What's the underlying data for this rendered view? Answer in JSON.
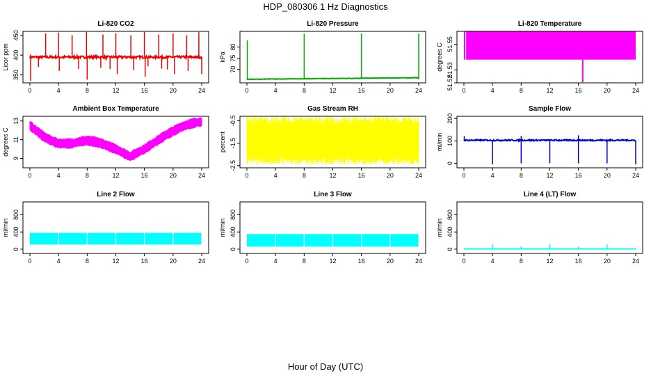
{
  "title": "HDP_080306  1 Hz Diagnostics",
  "xlabel": "Hour of Day (UTC)",
  "chart_data": [
    {
      "type": "line",
      "title": "Li-820 CO2",
      "ylabel": "Licor ppm",
      "color": "#ee0000",
      "xlim": [
        0,
        24
      ],
      "ylim": [
        330,
        460
      ],
      "xticks": [
        0,
        4,
        8,
        12,
        16,
        20,
        24
      ],
      "yticks": [
        350,
        400,
        450
      ],
      "ytick_labels": [
        "350",
        "400",
        "450"
      ],
      "baseline": 395,
      "noise": 3,
      "spikes_up": [
        [
          2.2,
          455
        ],
        [
          4.0,
          457
        ],
        [
          5.9,
          450
        ],
        [
          7.9,
          458
        ],
        [
          10.2,
          452
        ],
        [
          12.0,
          455
        ],
        [
          14.1,
          450
        ],
        [
          16.0,
          460
        ],
        [
          18.0,
          452
        ],
        [
          20.0,
          455
        ],
        [
          21.9,
          450
        ],
        [
          23.6,
          458
        ]
      ],
      "spikes_down": [
        [
          0.1,
          335
        ],
        [
          1.2,
          370
        ],
        [
          4.1,
          360
        ],
        [
          6.8,
          365
        ],
        [
          8.0,
          338
        ],
        [
          9.9,
          368
        ],
        [
          11.2,
          365
        ],
        [
          12.2,
          352
        ],
        [
          14.5,
          362
        ],
        [
          16.1,
          345
        ],
        [
          16.5,
          372
        ],
        [
          18.4,
          366
        ],
        [
          19.2,
          364
        ],
        [
          20.2,
          352
        ],
        [
          22.1,
          360
        ],
        [
          24.0,
          352
        ]
      ]
    },
    {
      "type": "line",
      "title": "Li-820 Pressure",
      "ylabel": "kPa",
      "color": "#00aa00",
      "xlim": [
        0,
        24
      ],
      "ylim": [
        64,
        87
      ],
      "xticks": [
        0,
        4,
        8,
        12,
        16,
        20,
        24
      ],
      "yticks": [
        70,
        75,
        80
      ],
      "ytick_labels": [
        "70",
        "75",
        "80"
      ],
      "baseline": 65.6,
      "baseline_end": 66.3,
      "noise": 0.1,
      "spikes_up": [
        [
          0.05,
          83
        ],
        [
          8.0,
          86
        ],
        [
          16.0,
          86
        ],
        [
          24.0,
          86
        ]
      ],
      "spikes_down": []
    },
    {
      "type": "area",
      "title": "Li-820 Temperature",
      "ylabel": "degrees C",
      "color": "#ff00ff",
      "xlim": [
        0,
        24
      ],
      "ylim": [
        51.52,
        51.56
      ],
      "xticks": [
        0,
        4,
        8,
        12,
        16,
        20,
        24
      ],
      "yticks": [
        51.52,
        51.53,
        51.55
      ],
      "ytick_labels": [
        "51.52",
        "51.53",
        "51.55"
      ],
      "band": [
        51.538,
        51.563
      ],
      "gaps": [
        0.25
      ],
      "spikes_down": [
        [
          16.6,
          51.52
        ]
      ]
    },
    {
      "type": "area",
      "title": "Ambient Box Temperature",
      "ylabel": "degrees C",
      "color": "#ff00ff",
      "xlim": [
        0,
        24
      ],
      "ylim": [
        8,
        13.5
      ],
      "xticks": [
        0,
        4,
        8,
        12,
        16,
        20,
        24
      ],
      "yticks": [
        9,
        11,
        13
      ],
      "ytick_labels": [
        "9",
        "11",
        "13"
      ],
      "curve": [
        [
          0,
          12.5
        ],
        [
          1,
          11.9
        ],
        [
          2,
          11.3
        ],
        [
          3,
          10.9
        ],
        [
          4,
          10.6
        ],
        [
          5,
          10.6
        ],
        [
          6,
          10.6
        ],
        [
          7,
          10.8
        ],
        [
          8,
          10.9
        ],
        [
          9,
          10.8
        ],
        [
          10,
          10.6
        ],
        [
          11,
          10.3
        ],
        [
          12,
          10.0
        ],
        [
          13,
          9.6
        ],
        [
          14,
          9.2
        ],
        [
          15,
          9.6
        ],
        [
          16,
          10.0
        ],
        [
          17,
          10.5
        ],
        [
          18,
          11.0
        ],
        [
          19,
          11.5
        ],
        [
          20,
          11.9
        ],
        [
          21,
          12.3
        ],
        [
          22,
          12.6
        ],
        [
          23,
          12.8
        ],
        [
          24,
          12.9
        ]
      ],
      "half_width": 0.55
    },
    {
      "type": "area",
      "title": "Gas Stream RH",
      "ylabel": "percent",
      "color": "#ffff00",
      "xlim": [
        0,
        24
      ],
      "ylim": [
        -2.6,
        -0.3
      ],
      "xticks": [
        0,
        4,
        8,
        12,
        16,
        20,
        24
      ],
      "yticks": [
        -2.5,
        -1.5,
        -0.5
      ],
      "ytick_labels": [
        "-2.5",
        "-1.5",
        "-0.5"
      ],
      "band": [
        -2.05,
        -0.7
      ],
      "noise": 0.4
    },
    {
      "type": "line",
      "title": "Sample Flow",
      "ylabel": "ml/min",
      "color": "#0000cc",
      "xlim": [
        0,
        24
      ],
      "ylim": [
        -20,
        210
      ],
      "xticks": [
        0,
        4,
        8,
        12,
        16,
        20,
        24
      ],
      "yticks": [
        0,
        100,
        200
      ],
      "ytick_labels": [
        "0",
        "100",
        "200"
      ],
      "baseline": 103,
      "noise": 3,
      "spikes_up": [
        [
          0.05,
          122
        ],
        [
          8.0,
          122
        ],
        [
          16.0,
          125
        ]
      ],
      "spikes_down": [
        [
          4.0,
          -5
        ],
        [
          8.0,
          0
        ],
        [
          12.0,
          0
        ],
        [
          16.0,
          0
        ],
        [
          20.0,
          0
        ],
        [
          24.0,
          -5
        ]
      ]
    },
    {
      "type": "area",
      "title": "Line 2 Flow",
      "ylabel": "ml/min",
      "color": "#00ffff",
      "xlim": [
        0,
        24
      ],
      "ylim": [
        -100,
        1100
      ],
      "xticks": [
        0,
        4,
        8,
        12,
        16,
        20,
        24
      ],
      "yticks": [
        0,
        400,
        800
      ],
      "ytick_labels": [
        "0",
        "400",
        "800"
      ],
      "band": [
        110,
        380
      ],
      "gaps": [
        4.0,
        8.0,
        12.0,
        16.0,
        20.0,
        24.0
      ]
    },
    {
      "type": "area",
      "title": "Line 3 Flow",
      "ylabel": "ml/min",
      "color": "#00ffff",
      "xlim": [
        0,
        24
      ],
      "ylim": [
        -100,
        1100
      ],
      "xticks": [
        0,
        4,
        8,
        12,
        16,
        20,
        24
      ],
      "yticks": [
        0,
        400,
        800
      ],
      "ytick_labels": [
        "0",
        "400",
        "800"
      ],
      "band": [
        60,
        350
      ],
      "gaps": [
        4.0,
        8.0,
        12.0,
        16.0,
        20.0,
        24.0
      ]
    },
    {
      "type": "line",
      "title": "Line 4 (LT) Flow",
      "ylabel": "ml/min",
      "color": "#00ffff",
      "xlim": [
        0,
        24
      ],
      "ylim": [
        -100,
        1100
      ],
      "xticks": [
        0,
        4,
        8,
        12,
        16,
        20,
        24
      ],
      "yticks": [
        0,
        400,
        800
      ],
      "ytick_labels": [
        "0",
        "400",
        "800"
      ],
      "baseline": 5,
      "noise": 0,
      "spikes_up": [
        [
          4.0,
          110
        ],
        [
          8.0,
          70
        ],
        [
          12.0,
          120
        ],
        [
          16.0,
          60
        ],
        [
          20.0,
          110
        ]
      ],
      "spikes_down": []
    }
  ]
}
